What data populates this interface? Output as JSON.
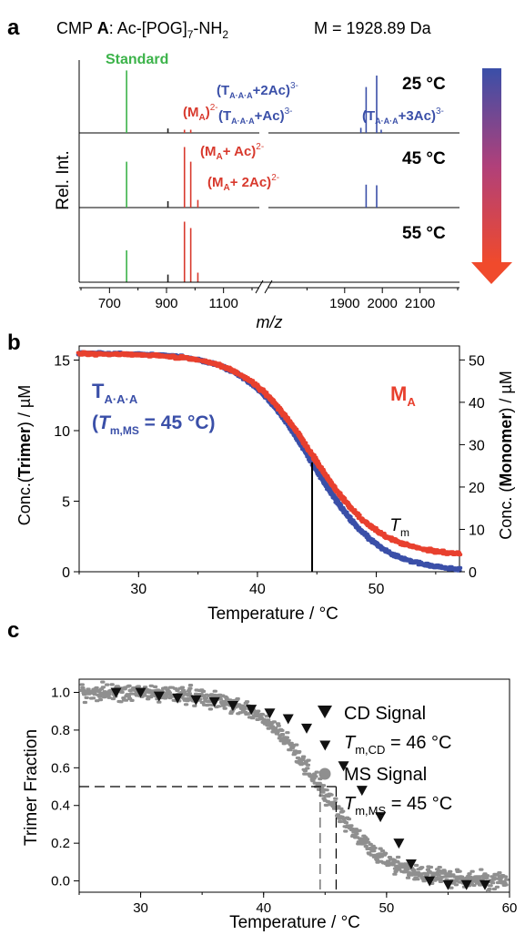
{
  "panel_a": {
    "letter": "a",
    "header_prefix": "CMP ",
    "header_bold": "A",
    "header_rest": ": Ac-[POG]",
    "header_sub": "7",
    "header_end": "-NH",
    "header_sub2": "2",
    "mass_label": "M = 1928.89 Da",
    "ylabel": "Rel. Int.",
    "xlabel": "m/z",
    "standard_label": "Standard",
    "arrow_colors": [
      "#3a4fa8",
      "#f04a2c"
    ]
  },
  "panel_b": {
    "letter": "b",
    "tm_label": "T",
    "tm_sub": "m"
  },
  "panel_c": {
    "letter": "c"
  },
  "chart_data": [
    {
      "type": "line",
      "panel": "a",
      "xlabel": "m/z",
      "ylabel": "Rel. Int.",
      "x_ticks_left": [
        700,
        900,
        1100
      ],
      "x_ticks_right": [
        1900,
        2000,
        2100
      ],
      "axis_break": true,
      "spectra": [
        {
          "temperature": "25 °C",
          "peaks": [
            {
              "mz": 760,
              "rel": 0.98,
              "color": "#3cb34a"
            },
            {
              "mz": 905,
              "rel": 0.07,
              "color": "#222222"
            },
            {
              "mz": 963,
              "rel": 0.05,
              "color": "#d83a2e"
            },
            {
              "mz": 985,
              "rel": 0.05,
              "color": "#d83a2e"
            },
            {
              "mz": 1943,
              "rel": 0.08,
              "color": "#3a4fa8"
            },
            {
              "mz": 1957,
              "rel": 0.72,
              "color": "#3a4fa8"
            },
            {
              "mz": 1985,
              "rel": 0.9,
              "color": "#3a4fa8"
            },
            {
              "mz": 1997,
              "rel": 0.05,
              "color": "#3a4fa8"
            }
          ],
          "labels": [
            {
              "text": "(M",
              "sub": "A",
              "post": ")",
              "sup": "2-",
              "color": "#d83a2e"
            },
            {
              "text": "(T",
              "sub": "A·A·A",
              "post": "+2Ac)",
              "sup": "3-",
              "color": "#3a4fa8"
            },
            {
              "text": "(T",
              "sub": "A·A·A",
              "post": "+Ac)",
              "sup": "3-",
              "color": "#3a4fa8"
            },
            {
              "text": "(T",
              "sub": "A·A·A",
              "post": "+3Ac)",
              "sup": "3-",
              "color": "#3a4fa8"
            }
          ]
        },
        {
          "temperature": "45 °C",
          "peaks": [
            {
              "mz": 760,
              "rel": 0.72,
              "color": "#3cb34a"
            },
            {
              "mz": 905,
              "rel": 0.1,
              "color": "#222222"
            },
            {
              "mz": 963,
              "rel": 0.95,
              "color": "#d83a2e"
            },
            {
              "mz": 985,
              "rel": 0.72,
              "color": "#d83a2e"
            },
            {
              "mz": 1010,
              "rel": 0.12,
              "color": "#d83a2e"
            },
            {
              "mz": 1957,
              "rel": 0.36,
              "color": "#3a4fa8"
            },
            {
              "mz": 1985,
              "rel": 0.35,
              "color": "#3a4fa8"
            }
          ],
          "labels": [
            {
              "text": "(M",
              "sub": "A",
              "post": "+ Ac)",
              "sup": "2-",
              "color": "#d83a2e"
            },
            {
              "text": "(M",
              "sub": "A",
              "post": "+ 2Ac)",
              "sup": "2-",
              "color": "#d83a2e"
            }
          ]
        },
        {
          "temperature": "55 °C",
          "peaks": [
            {
              "mz": 760,
              "rel": 0.5,
              "color": "#3cb34a"
            },
            {
              "mz": 905,
              "rel": 0.12,
              "color": "#222222"
            },
            {
              "mz": 963,
              "rel": 0.95,
              "color": "#d83a2e"
            },
            {
              "mz": 985,
              "rel": 0.85,
              "color": "#d83a2e"
            },
            {
              "mz": 1010,
              "rel": 0.15,
              "color": "#d83a2e"
            }
          ],
          "labels": []
        }
      ]
    },
    {
      "type": "scatter",
      "panel": "b",
      "xlabel": "Temperature / °C",
      "x_range": [
        25,
        57
      ],
      "x_ticks": [
        30,
        40,
        50
      ],
      "ylabel_left": {
        "pre": "Conc.(",
        "bold": "Trimer",
        "post": ") / µM"
      },
      "ylabel_right": {
        "pre": "Conc. (",
        "bold": "Monomer",
        "post": ") / µM"
      },
      "y_left_range": [
        0,
        16
      ],
      "y_left_ticks": [
        0,
        5,
        10,
        15
      ],
      "y_right_range": [
        0,
        53.3
      ],
      "y_right_ticks": [
        0,
        10,
        20,
        30,
        40,
        50
      ],
      "tm": 44.6,
      "series": [
        {
          "name": "T",
          "name_sub": "A·A·A",
          "annotation": "T",
          "annotation_sub": "m,MS",
          "annotation_value": " = 45 °C",
          "color": "#3a4fa8",
          "axis": "left",
          "top": 15.5,
          "bottom": 0.0,
          "midpoint": 44.6,
          "width": 2.8
        },
        {
          "name": "M",
          "name_sub": "A",
          "color": "#e8402e",
          "axis": "right",
          "top": 51.5,
          "bottom": 3.7,
          "midpoint": 44.6,
          "width": 2.8
        }
      ]
    },
    {
      "type": "scatter",
      "panel": "c",
      "xlabel": "Temperature / °C",
      "ylabel": "Trimer Fraction",
      "x_range": [
        25,
        60
      ],
      "x_ticks": [
        30,
        40,
        50,
        60
      ],
      "y_range": [
        -0.06,
        1.07
      ],
      "y_ticks": [
        "0.0",
        "0.2",
        "0.4",
        "0.6",
        "0.8",
        "1.0"
      ],
      "tm_ms": 44.6,
      "tm_cd": 45.9,
      "half_level": 0.5,
      "cd_points": [
        [
          28,
          1.0
        ],
        [
          30,
          1.0
        ],
        [
          31.5,
          0.98
        ],
        [
          33,
          0.97
        ],
        [
          34.5,
          0.96
        ],
        [
          36,
          0.95
        ],
        [
          37.5,
          0.93
        ],
        [
          39,
          0.91
        ],
        [
          40.5,
          0.89
        ],
        [
          42,
          0.86
        ],
        [
          43.5,
          0.81
        ],
        [
          45,
          0.72
        ],
        [
          46.5,
          0.61
        ],
        [
          48,
          0.48
        ],
        [
          49.5,
          0.34
        ],
        [
          51,
          0.2
        ],
        [
          52,
          0.09
        ],
        [
          53.5,
          0.0
        ],
        [
          55,
          -0.02
        ],
        [
          56.5,
          -0.02
        ],
        [
          58,
          -0.02
        ]
      ],
      "ms_curve": {
        "top": 1.0,
        "bottom": 0.0,
        "midpoint": 44.6,
        "width": 2.6
      },
      "legend": [
        {
          "marker": "triangle-down",
          "label": "CD Signal",
          "tm_label": "T",
          "tm_sub": "m,CD",
          "tm_value": " = 46 °C",
          "color": "#111111"
        },
        {
          "marker": "circle",
          "label": "MS Signal",
          "tm_label": "T",
          "tm_sub": "m,MS",
          "tm_value": " = 45 °C",
          "color": "#8f8f8f"
        }
      ]
    }
  ]
}
